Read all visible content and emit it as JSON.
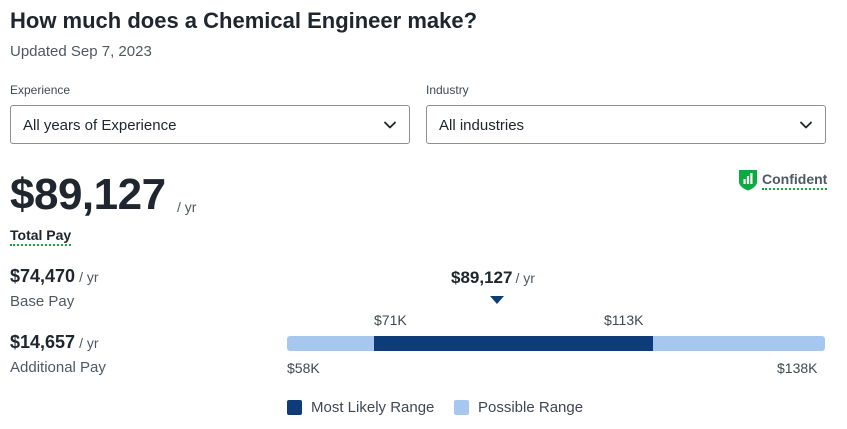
{
  "header": {
    "title": "How much does a Chemical Engineer make?",
    "updated": "Updated Sep 7, 2023"
  },
  "filters": {
    "experience": {
      "label": "Experience",
      "value": "All years of Experience"
    },
    "industry": {
      "label": "Industry",
      "value": "All industries"
    }
  },
  "total_pay": {
    "amount": "$89,127",
    "unit": "/ yr",
    "label": "Total Pay"
  },
  "confidence": {
    "label": "Confident",
    "icon": "confidence-shield-icon",
    "color": "#0caa41"
  },
  "base_pay": {
    "amount": "$74,470",
    "unit": "/ yr",
    "label": "Base Pay"
  },
  "additional_pay": {
    "amount": "$14,657",
    "unit": "/ yr",
    "label": "Additional Pay"
  },
  "range": {
    "median": {
      "amount": "$89,127",
      "unit": "/ yr"
    },
    "likely_low": "$71K",
    "likely_high": "$113K",
    "possible_low": "$58K",
    "possible_high": "$138K",
    "likely_color": "#0d3c79",
    "possible_color": "#a6c8ef"
  },
  "legend": {
    "most_likely": "Most Likely Range",
    "possible": "Possible Range"
  }
}
